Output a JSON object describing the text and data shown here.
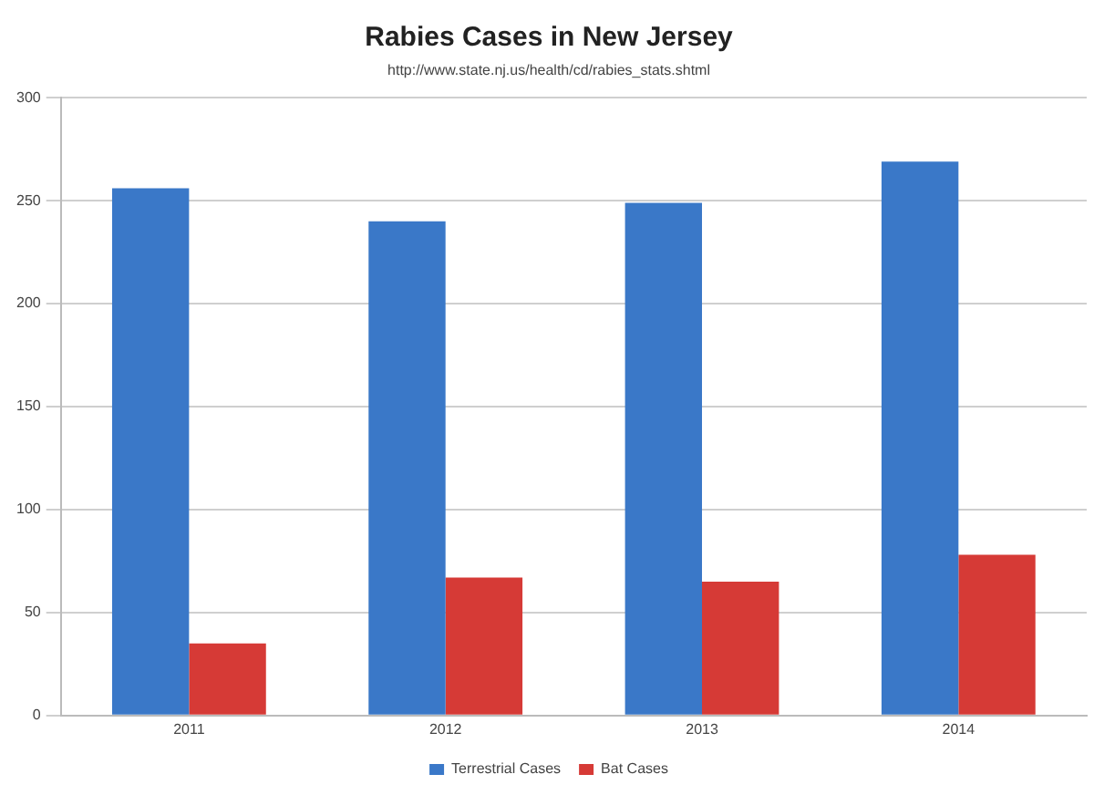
{
  "chart_data": {
    "type": "bar",
    "title": "Rabies Cases in New Jersey",
    "subtitle": "http://www.state.nj.us/health/cd/rabies_stats.shtml",
    "categories": [
      "2011",
      "2012",
      "2013",
      "2014"
    ],
    "series": [
      {
        "name": "Terrestrial Cases",
        "color": "#3a78c8",
        "values": [
          256,
          240,
          249,
          269
        ]
      },
      {
        "name": "Bat Cases",
        "color": "#d63a36",
        "values": [
          35,
          67,
          65,
          78
        ]
      }
    ],
    "ylim": [
      0,
      300
    ],
    "yticks": [
      0,
      50,
      100,
      150,
      200,
      250,
      300
    ],
    "grid": "y",
    "legend": "bottom"
  }
}
